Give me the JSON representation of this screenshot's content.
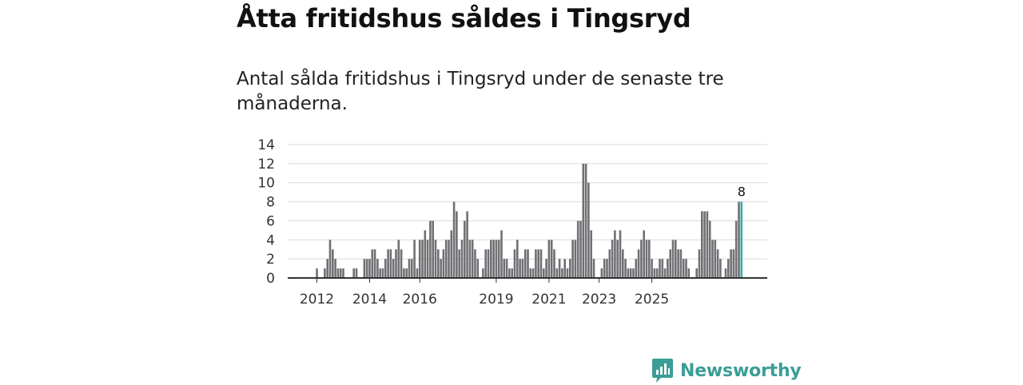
{
  "header": {
    "title": "Åtta fritidshus såldes i Tingsryd",
    "subtitle": "Antal sålda fritidshus i Tingsryd under de senaste tre månaderna."
  },
  "brand": {
    "name": "Newsworthy"
  },
  "colors": {
    "bar": "#707074",
    "highlight": "#3aaba3",
    "grid": "#d9d9d9",
    "axis": "#333333"
  },
  "chart_data": {
    "type": "bar",
    "title": "",
    "xlabel": "",
    "ylabel": "",
    "ylim": [
      0,
      14
    ],
    "yticks": [
      "0",
      "2",
      "4",
      "6",
      "8",
      "10",
      "12",
      "14"
    ],
    "xticks": [
      {
        "label": "2012",
        "index": 3
      },
      {
        "label": "2014",
        "index": 23
      },
      {
        "label": "2016",
        "index": 42
      },
      {
        "label": "2019",
        "index": 71
      },
      {
        "label": "2021",
        "index": 91
      },
      {
        "label": "2023",
        "index": 110
      },
      {
        "label": "2025",
        "index": 130
      }
    ],
    "values": [
      0,
      0,
      0,
      1,
      0,
      0,
      1,
      2,
      4,
      3,
      2,
      1,
      1,
      1,
      0,
      0,
      0,
      1,
      1,
      0,
      0,
      2,
      2,
      2,
      3,
      3,
      2,
      1,
      1,
      2,
      3,
      3,
      2,
      3,
      4,
      3,
      1,
      1,
      2,
      2,
      4,
      1,
      4,
      4,
      5,
      4,
      6,
      6,
      4,
      3,
      2,
      3,
      4,
      4,
      5,
      8,
      7,
      3,
      4,
      6,
      7,
      4,
      4,
      3,
      2,
      0,
      1,
      3,
      3,
      4,
      4,
      4,
      4,
      5,
      2,
      2,
      1,
      1,
      3,
      4,
      2,
      2,
      3,
      3,
      1,
      1,
      3,
      3,
      3,
      1,
      2,
      4,
      4,
      3,
      1,
      2,
      1,
      2,
      1,
      2,
      4,
      4,
      6,
      6,
      12,
      12,
      10,
      5,
      2,
      0,
      0,
      1,
      2,
      2,
      3,
      4,
      5,
      4,
      5,
      3,
      2,
      1,
      1,
      1,
      2,
      3,
      4,
      5,
      4,
      4,
      2,
      1,
      1,
      2,
      2,
      1,
      2,
      3,
      4,
      4,
      3,
      3,
      2,
      2,
      1,
      0,
      0,
      1,
      3,
      7,
      7,
      7,
      6,
      4,
      4,
      3,
      2,
      0,
      1,
      2,
      3,
      3,
      6,
      8,
      8
    ],
    "highlight_index": 164,
    "annotation": {
      "label": "8",
      "index": 164
    }
  }
}
